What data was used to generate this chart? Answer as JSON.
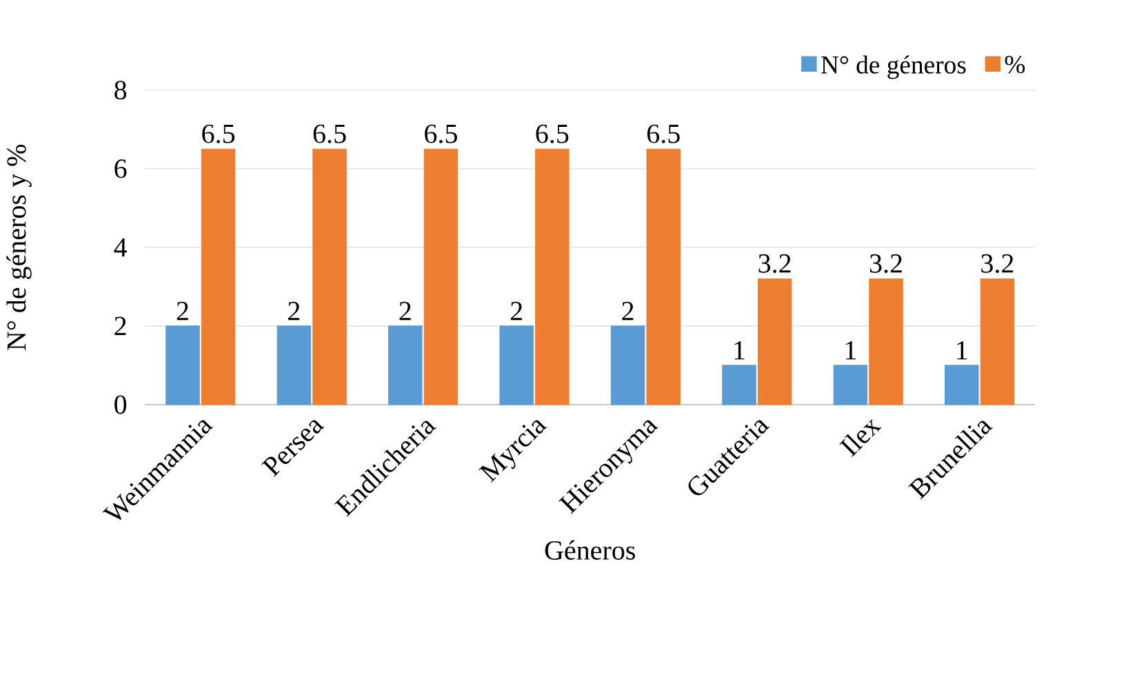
{
  "chart_data": {
    "type": "bar",
    "xlabel": "Géneros",
    "ylabel": "N°    de géneros y %",
    "categories": [
      "Weinmannia",
      "Persea",
      "Endlicheria",
      "Myrcia",
      "Hieronyma",
      "Guatteria",
      "Ilex",
      "Brunellia"
    ],
    "series": [
      {
        "name": "N° de géneros",
        "color": "#5b9bd5",
        "values": [
          2,
          2,
          2,
          2,
          2,
          1,
          1,
          1
        ]
      },
      {
        "name": "%",
        "color": "#ed7d31",
        "values": [
          6.5,
          6.5,
          6.5,
          6.5,
          6.5,
          3.2,
          3.2,
          3.2
        ]
      }
    ],
    "ylim": [
      0,
      8
    ],
    "yticks": [
      0,
      2,
      4,
      6,
      8
    ],
    "grid": "y",
    "legend": "top right",
    "data_labels": true
  }
}
